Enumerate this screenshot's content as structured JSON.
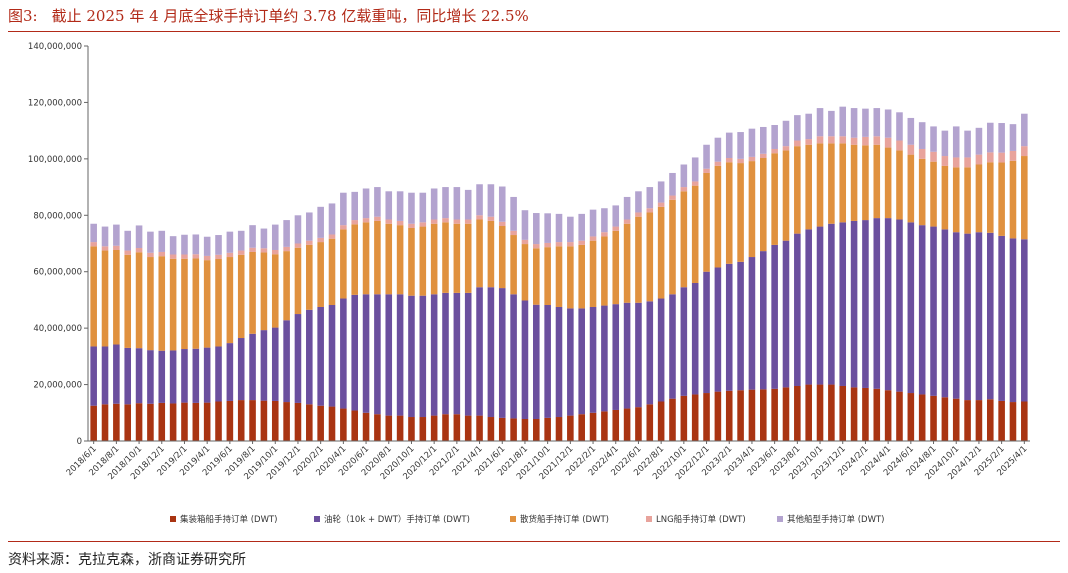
{
  "header": {
    "figure_label": "图3:",
    "title": "截止 2025 年 4 月底全球手持订单约 3.78 亿载重吨，同比增长 22.5%"
  },
  "footer": {
    "source": "资料来源：克拉克森，浙商证券研究所"
  },
  "colors": {
    "accent": "#b22a18",
    "series": [
      "#a93412",
      "#6b4f9e",
      "#e0913f",
      "#e8a39c",
      "#b3a3cf"
    ]
  },
  "chart_data": {
    "type": "bar",
    "stacked": true,
    "title": "",
    "xlabel": "",
    "ylabel": "",
    "ylim": [
      0,
      140000000
    ],
    "yticks": [
      0,
      20000000,
      40000000,
      60000000,
      80000000,
      100000000,
      120000000,
      140000000
    ],
    "ytick_labels": [
      "0",
      "20,000,000",
      "40,000,000",
      "60,000,000",
      "80,000,000",
      "100,000,000",
      "120,000,000",
      "140,000,000"
    ],
    "grid": false,
    "legend_position": "bottom",
    "x_tick_labels": [
      "2018/6/1",
      "2018/8/1",
      "2018/10/1",
      "2018/12/1",
      "2019/2/1",
      "2019/4/1",
      "2019/6/1",
      "2019/8/1",
      "2019/10/1",
      "2019/12/1",
      "2020/2/1",
      "2020/4/1",
      "2020/6/1",
      "2020/8/1",
      "2020/10/1",
      "2020/12/1",
      "2021/2/1",
      "2021/4/1",
      "2021/6/1",
      "2021/8/1",
      "2021/10/1",
      "2021/12/1",
      "2022/2/1",
      "2022/4/1",
      "2022/6/1",
      "2022/8/1",
      "2022/10/1",
      "2022/12/1",
      "2023/2/1",
      "2023/4/1",
      "2023/6/1",
      "2023/8/1",
      "2023/10/1",
      "2023/12/1",
      "2024/2/1",
      "2024/4/1",
      "2024/6/1",
      "2024/8/1",
      "2024/10/1",
      "2024/12/1",
      "2025/2/1",
      "2025/4/1"
    ],
    "categories": [
      "2018/6/1",
      "2018/7/1",
      "2018/8/1",
      "2018/9/1",
      "2018/10/1",
      "2018/11/1",
      "2018/12/1",
      "2019/1/1",
      "2019/2/1",
      "2019/3/1",
      "2019/4/1",
      "2019/5/1",
      "2019/6/1",
      "2019/7/1",
      "2019/8/1",
      "2019/9/1",
      "2019/10/1",
      "2019/11/1",
      "2019/12/1",
      "2020/1/1",
      "2020/2/1",
      "2020/3/1",
      "2020/4/1",
      "2020/5/1",
      "2020/6/1",
      "2020/7/1",
      "2020/8/1",
      "2020/9/1",
      "2020/10/1",
      "2020/11/1",
      "2020/12/1",
      "2021/1/1",
      "2021/2/1",
      "2021/3/1",
      "2021/4/1",
      "2021/5/1",
      "2021/6/1",
      "2021/7/1",
      "2021/8/1",
      "2021/9/1",
      "2021/10/1",
      "2021/11/1",
      "2021/12/1",
      "2022/1/1",
      "2022/2/1",
      "2022/3/1",
      "2022/4/1",
      "2022/5/1",
      "2022/6/1",
      "2022/7/1",
      "2022/8/1",
      "2022/9/1",
      "2022/10/1",
      "2022/11/1",
      "2022/12/1",
      "2023/1/1",
      "2023/2/1",
      "2023/3/1",
      "2023/4/1",
      "2023/5/1",
      "2023/6/1",
      "2023/7/1",
      "2023/8/1",
      "2023/9/1",
      "2023/10/1",
      "2023/11/1",
      "2023/12/1",
      "2024/1/1",
      "2024/2/1",
      "2024/3/1",
      "2024/4/1",
      "2024/5/1",
      "2024/6/1",
      "2024/7/1",
      "2024/8/1",
      "2024/9/1",
      "2024/10/1",
      "2024/11/1",
      "2024/12/1",
      "2025/1/1",
      "2025/2/1",
      "2025/3/1",
      "2025/4/1"
    ],
    "series": [
      {
        "name": "集装箱船手持订单 (DWT)",
        "values": [
          12.5,
          13.0,
          13.2,
          13.0,
          13.4,
          13.2,
          13.5,
          13.3,
          13.6,
          13.5,
          13.6,
          14.0,
          14.2,
          14.5,
          14.5,
          14.3,
          14.2,
          13.8,
          13.5,
          13.0,
          12.5,
          12.2,
          11.5,
          10.8,
          10.0,
          9.5,
          9.0,
          9.0,
          8.5,
          8.5,
          9.0,
          9.5,
          9.5,
          9.0,
          9.0,
          8.5,
          8.2,
          8.0,
          7.8,
          7.8,
          8.2,
          8.5,
          9.0,
          9.5,
          10.0,
          10.5,
          11.0,
          11.5,
          12.0,
          13.0,
          14.0,
          15.0,
          16.0,
          16.5,
          17.0,
          17.5,
          17.8,
          18.0,
          18.2,
          18.3,
          18.5,
          19.0,
          19.5,
          20.0,
          20.0,
          20.0,
          19.5,
          19.0,
          18.8,
          18.5,
          18.0,
          17.5,
          17.0,
          16.5,
          16.0,
          15.5,
          15.0,
          14.5,
          14.5,
          14.8,
          14.2,
          13.8,
          14.0
        ]
      },
      {
        "name": "油轮（10k + DWT）手持订单 (DWT)",
        "values": [
          21.0,
          20.5,
          21.0,
          20.0,
          19.5,
          19.0,
          18.5,
          18.8,
          19.0,
          19.2,
          19.5,
          19.5,
          20.5,
          22.0,
          23.5,
          25.0,
          26.0,
          29.0,
          31.5,
          33.5,
          35.0,
          36.0,
          39.0,
          41.0,
          42.0,
          42.5,
          43.0,
          43.0,
          43.0,
          43.0,
          43.0,
          43.0,
          43.0,
          43.5,
          45.5,
          46.0,
          46.0,
          44.0,
          42.0,
          40.5,
          40.0,
          39.0,
          38.0,
          37.5,
          37.5,
          37.5,
          37.5,
          37.5,
          37.0,
          36.5,
          36.5,
          37.0,
          38.5,
          39.5,
          43.0,
          44.0,
          45.0,
          45.5,
          47.0,
          49.0,
          51.0,
          52.0,
          54.0,
          55.0,
          56.0,
          57.0,
          58.0,
          59.0,
          59.5,
          60.5,
          61.0,
          61.0,
          60.5,
          60.0,
          60.0,
          59.5,
          59.0,
          59.0,
          59.5,
          59.0,
          58.5,
          58.0,
          57.5
        ]
      },
      {
        "name": "散货船手持订单 (DWT)",
        "values": [
          35.5,
          34.0,
          33.5,
          33.0,
          34.0,
          33.0,
          33.5,
          32.5,
          32.0,
          32.0,
          31.0,
          31.0,
          30.5,
          29.5,
          29.0,
          27.5,
          26.0,
          24.5,
          23.5,
          23.0,
          23.0,
          23.5,
          24.5,
          25.0,
          25.5,
          26.0,
          25.0,
          24.5,
          24.0,
          24.5,
          25.0,
          25.0,
          24.5,
          24.5,
          24.0,
          23.5,
          22.0,
          21.0,
          20.0,
          20.0,
          20.5,
          21.5,
          22.0,
          22.5,
          23.5,
          24.5,
          26.0,
          28.0,
          30.5,
          31.5,
          32.5,
          33.5,
          34.0,
          34.5,
          35.0,
          36.0,
          36.0,
          35.0,
          34.0,
          33.0,
          32.5,
          32.0,
          31.0,
          30.0,
          29.5,
          28.5,
          28.0,
          27.0,
          26.5,
          26.0,
          25.0,
          24.5,
          24.0,
          23.5,
          23.0,
          22.5,
          23.0,
          23.5,
          24.0,
          25.0,
          26.0,
          27.5,
          29.5
        ]
      },
      {
        "name": "LNG船手持订单 (DWT)",
        "values": [
          1.5,
          1.5,
          1.5,
          1.5,
          1.5,
          1.5,
          1.5,
          1.5,
          1.5,
          1.5,
          1.5,
          1.5,
          1.5,
          1.5,
          1.5,
          1.5,
          1.5,
          1.5,
          1.5,
          1.5,
          1.5,
          1.5,
          1.5,
          1.5,
          1.5,
          1.5,
          1.5,
          1.5,
          1.5,
          1.5,
          1.5,
          1.5,
          1.5,
          1.5,
          1.5,
          1.5,
          1.5,
          1.5,
          1.5,
          1.5,
          1.5,
          1.5,
          1.5,
          1.5,
          1.5,
          1.5,
          1.5,
          1.5,
          1.5,
          1.5,
          1.5,
          1.5,
          1.5,
          1.5,
          1.5,
          1.5,
          1.5,
          1.5,
          1.5,
          1.5,
          1.5,
          1.5,
          2.0,
          2.0,
          2.5,
          2.5,
          2.5,
          2.5,
          3.0,
          3.0,
          3.5,
          3.5,
          3.5,
          3.5,
          3.5,
          3.5,
          3.5,
          3.5,
          3.5,
          3.5,
          3.5,
          3.5,
          3.5
        ]
      },
      {
        "name": "其他船型手持订单 (DWT)",
        "values": [
          6.5,
          7.0,
          7.5,
          7.0,
          8.0,
          7.5,
          7.5,
          6.5,
          7.0,
          7.0,
          6.8,
          7.0,
          7.5,
          7.0,
          8.0,
          7.0,
          9.0,
          9.5,
          10.0,
          10.0,
          11.0,
          11.0,
          11.5,
          10.0,
          10.5,
          10.5,
          10.0,
          10.5,
          11.0,
          10.5,
          11.0,
          11.0,
          11.5,
          10.5,
          11.0,
          11.5,
          12.5,
          12.0,
          10.5,
          11.0,
          10.5,
          10.0,
          9.0,
          9.5,
          9.5,
          8.5,
          7.5,
          8.0,
          7.5,
          7.5,
          7.5,
          8.0,
          8.0,
          8.5,
          8.5,
          8.5,
          9.0,
          9.5,
          10.0,
          9.5,
          8.5,
          9.0,
          9.0,
          9.0,
          10.0,
          9.0,
          10.5,
          10.5,
          10.0,
          10.0,
          10.0,
          10.0,
          9.5,
          9.5,
          9.0,
          9.0,
          11.0,
          9.5,
          9.5,
          10.5,
          10.5,
          9.5,
          11.5
        ]
      }
    ]
  }
}
